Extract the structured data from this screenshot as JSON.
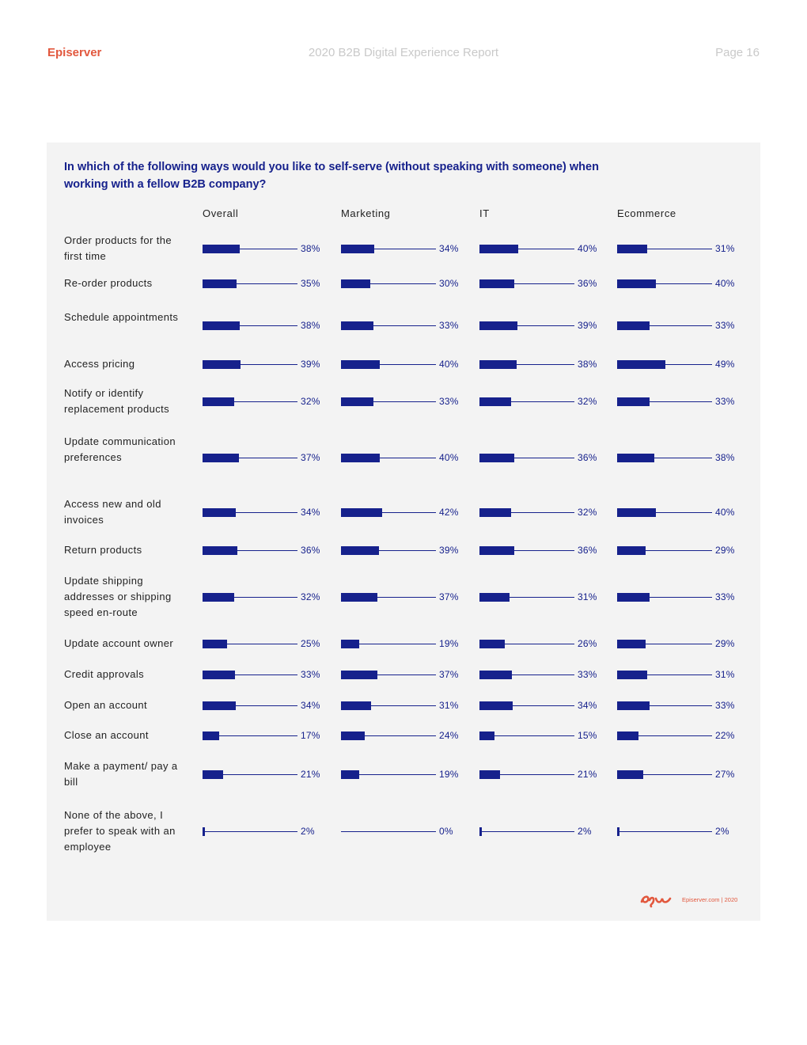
{
  "header": {
    "brand": "Episerver",
    "report_title": "2020 B2B Digital Experience Report",
    "page": "Page 16"
  },
  "footer": {
    "logo_text": "epi",
    "text": "Episerver.com  |  2020"
  },
  "colors": {
    "accent": "#16218c",
    "brand": "#e2583e",
    "panel": "#f3f3f3"
  },
  "chart_data": {
    "type": "bar",
    "title": "In which of the following ways would you like to self-serve (without speaking with someone) when working with a fellow B2B company?",
    "series": [
      {
        "name": "Overall",
        "values": [
          38,
          35,
          38,
          39,
          32,
          37,
          34,
          36,
          32,
          25,
          33,
          34,
          17,
          21,
          2
        ]
      },
      {
        "name": "Marketing",
        "values": [
          34,
          30,
          33,
          40,
          33,
          40,
          42,
          39,
          37,
          19,
          37,
          31,
          24,
          19,
          0
        ]
      },
      {
        "name": "IT",
        "values": [
          40,
          36,
          39,
          38,
          32,
          36,
          32,
          36,
          31,
          26,
          33,
          34,
          15,
          21,
          2
        ]
      },
      {
        "name": "Ecommerce",
        "values": [
          31,
          40,
          33,
          49,
          33,
          38,
          40,
          29,
          33,
          29,
          31,
          33,
          22,
          27,
          2
        ]
      }
    ],
    "categories": [
      "Order products for the first time",
      "Re-order products",
      "Schedule appointments",
      "Access pricing",
      "Notify or identify replacement products",
      "Update communication preferences",
      "Access new and old invoices",
      "Return products",
      "Update shipping addresses or shipping speed en-route",
      "Update account owner",
      "Credit approvals",
      "Open an account",
      "Close an account",
      "Make a payment/ pay a bill",
      "None of the above, I prefer to speak with an employee"
    ],
    "value_suffix": "%",
    "xlim": [
      0,
      100
    ]
  }
}
